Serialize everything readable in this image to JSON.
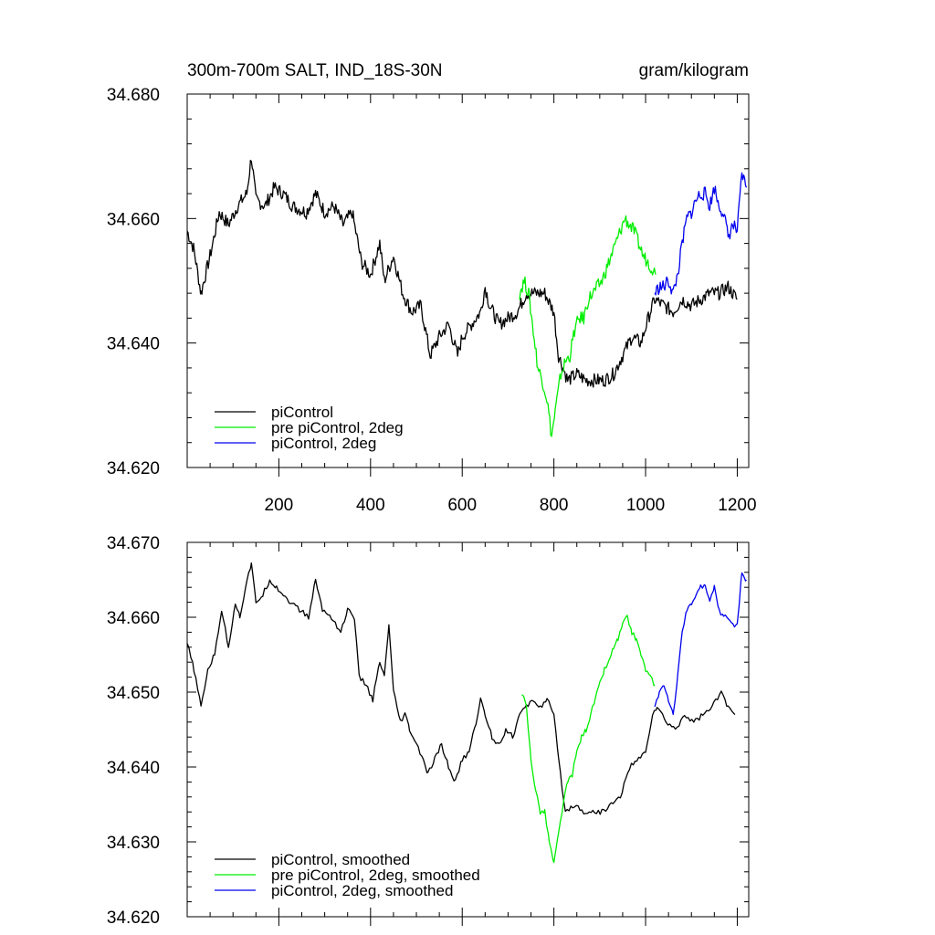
{
  "chart_data": [
    {
      "type": "line",
      "title": "300m-700m SALT, IND_18S-30N",
      "units": "gram/kilogram",
      "xlim": [
        0,
        1225
      ],
      "ylim": [
        34.62,
        34.68
      ],
      "xticks": [
        200,
        400,
        600,
        800,
        1000,
        1200
      ],
      "xtick_labels": [
        "200",
        "400",
        "600",
        "800",
        "1000",
        "1200"
      ],
      "yticks": [
        34.62,
        34.64,
        34.66,
        34.68
      ],
      "ytick_labels": [
        "34.620",
        "34.640",
        "34.660",
        "34.680"
      ],
      "grid": false,
      "legend_position": "bottom-left",
      "series": [
        {
          "name": "piControl",
          "color": "#000000",
          "points": [
            [
              0,
              34.658
            ],
            [
              15,
              34.655
            ],
            [
              30,
              34.648
            ],
            [
              50,
              34.654
            ],
            [
              70,
              34.661
            ],
            [
              90,
              34.659
            ],
            [
              110,
              34.662
            ],
            [
              130,
              34.664
            ],
            [
              140,
              34.67
            ],
            [
              150,
              34.663
            ],
            [
              170,
              34.662
            ],
            [
              190,
              34.665
            ],
            [
              210,
              34.664
            ],
            [
              230,
              34.662
            ],
            [
              260,
              34.661
            ],
            [
              280,
              34.664
            ],
            [
              300,
              34.661
            ],
            [
              320,
              34.662
            ],
            [
              340,
              34.659
            ],
            [
              360,
              34.661
            ],
            [
              380,
              34.653
            ],
            [
              400,
              34.651
            ],
            [
              420,
              34.656
            ],
            [
              430,
              34.65
            ],
            [
              450,
              34.654
            ],
            [
              470,
              34.648
            ],
            [
              490,
              34.645
            ],
            [
              510,
              34.646
            ],
            [
              530,
              34.638
            ],
            [
              550,
              34.641
            ],
            [
              570,
              34.643
            ],
            [
              590,
              34.638
            ],
            [
              600,
              34.641
            ],
            [
              620,
              34.643
            ],
            [
              640,
              34.645
            ],
            [
              650,
              34.649
            ],
            [
              660,
              34.646
            ],
            [
              680,
              34.643
            ],
            [
              700,
              34.644
            ],
            [
              720,
              34.645
            ],
            [
              740,
              34.648
            ],
            [
              760,
              34.648
            ],
            [
              780,
              34.648
            ],
            [
              800,
              34.645
            ],
            [
              810,
              34.638
            ],
            [
              830,
              34.634
            ],
            [
              850,
              34.635
            ],
            [
              870,
              34.634
            ],
            [
              890,
              34.634
            ],
            [
              910,
              34.634
            ],
            [
              930,
              34.635
            ],
            [
              950,
              34.638
            ],
            [
              970,
              34.641
            ],
            [
              990,
              34.64
            ],
            [
              1010,
              34.645
            ],
            [
              1020,
              34.647
            ],
            [
              1040,
              34.646
            ],
            [
              1060,
              34.645
            ],
            [
              1080,
              34.647
            ],
            [
              1100,
              34.646
            ],
            [
              1120,
              34.647
            ],
            [
              1140,
              34.648
            ],
            [
              1160,
              34.648
            ],
            [
              1180,
              34.649
            ],
            [
              1200,
              34.647
            ]
          ]
        },
        {
          "name": "pre piControl, 2deg",
          "color": "#00ee00",
          "points": [
            [
              725,
              34.648
            ],
            [
              735,
              34.65
            ],
            [
              745,
              34.648
            ],
            [
              755,
              34.642
            ],
            [
              765,
              34.636
            ],
            [
              775,
              34.634
            ],
            [
              785,
              34.631
            ],
            [
              795,
              34.625
            ],
            [
              805,
              34.63
            ],
            [
              815,
              34.635
            ],
            [
              825,
              34.637
            ],
            [
              835,
              34.638
            ],
            [
              845,
              34.642
            ],
            [
              855,
              34.644
            ],
            [
              865,
              34.644
            ],
            [
              875,
              34.647
            ],
            [
              885,
              34.648
            ],
            [
              895,
              34.649
            ],
            [
              905,
              34.65
            ],
            [
              915,
              34.652
            ],
            [
              925,
              34.654
            ],
            [
              935,
              34.656
            ],
            [
              945,
              34.658
            ],
            [
              955,
              34.66
            ],
            [
              965,
              34.659
            ],
            [
              975,
              34.658
            ],
            [
              985,
              34.656
            ],
            [
              995,
              34.654
            ],
            [
              1005,
              34.653
            ],
            [
              1015,
              34.652
            ],
            [
              1022,
              34.651
            ]
          ]
        },
        {
          "name": "piControl, 2deg",
          "color": "#0000ee",
          "points": [
            [
              1020,
              34.648
            ],
            [
              1030,
              34.649
            ],
            [
              1040,
              34.649
            ],
            [
              1050,
              34.65
            ],
            [
              1060,
              34.648
            ],
            [
              1070,
              34.651
            ],
            [
              1080,
              34.656
            ],
            [
              1090,
              34.66
            ],
            [
              1100,
              34.661
            ],
            [
              1110,
              34.663
            ],
            [
              1120,
              34.664
            ],
            [
              1130,
              34.664
            ],
            [
              1140,
              34.662
            ],
            [
              1150,
              34.665
            ],
            [
              1160,
              34.662
            ],
            [
              1170,
              34.661
            ],
            [
              1180,
              34.657
            ],
            [
              1190,
              34.659
            ],
            [
              1200,
              34.658
            ],
            [
              1210,
              34.667
            ],
            [
              1220,
              34.665
            ]
          ]
        }
      ]
    },
    {
      "type": "line",
      "xlim": [
        0,
        1225
      ],
      "ylim": [
        34.62,
        34.67
      ],
      "yticks": [
        34.62,
        34.63,
        34.64,
        34.65,
        34.66,
        34.67
      ],
      "ytick_labels": [
        "34.620",
        "34.630",
        "34.640",
        "34.650",
        "34.660",
        "34.670"
      ],
      "grid": false,
      "legend_position": "bottom-left",
      "series": [
        {
          "name": "piControl, smoothed",
          "color": "#000000",
          "points": [
            [
              0,
              34.6565
            ],
            [
              15,
              34.653
            ],
            [
              30,
              34.648
            ],
            [
              45,
              34.653
            ],
            [
              60,
              34.655
            ],
            [
              75,
              34.661
            ],
            [
              90,
              34.656
            ],
            [
              105,
              34.662
            ],
            [
              115,
              34.66
            ],
            [
              130,
              34.665
            ],
            [
              140,
              34.667
            ],
            [
              150,
              34.662
            ],
            [
              165,
              34.663
            ],
            [
              180,
              34.665
            ],
            [
              195,
              34.664
            ],
            [
              210,
              34.663
            ],
            [
              225,
              34.662
            ],
            [
              245,
              34.661
            ],
            [
              265,
              34.66
            ],
            [
              280,
              34.665
            ],
            [
              295,
              34.661
            ],
            [
              315,
              34.66
            ],
            [
              335,
              34.658
            ],
            [
              350,
              34.661
            ],
            [
              365,
              34.66
            ],
            [
              375,
              34.652
            ],
            [
              390,
              34.651
            ],
            [
              405,
              34.649
            ],
            [
              420,
              34.654
            ],
            [
              430,
              34.652
            ],
            [
              440,
              34.659
            ],
            [
              450,
              34.65
            ],
            [
              465,
              34.646
            ],
            [
              475,
              34.647
            ],
            [
              485,
              34.645
            ],
            [
              500,
              34.643
            ],
            [
              515,
              34.641
            ],
            [
              525,
              34.639
            ],
            [
              540,
              34.641
            ],
            [
              555,
              34.643
            ],
            [
              570,
              34.64
            ],
            [
              585,
              34.638
            ],
            [
              600,
              34.641
            ],
            [
              615,
              34.642
            ],
            [
              630,
              34.646
            ],
            [
              640,
              34.649
            ],
            [
              650,
              34.647
            ],
            [
              665,
              34.644
            ],
            [
              680,
              34.643
            ],
            [
              695,
              34.645
            ],
            [
              710,
              34.644
            ],
            [
              725,
              34.647
            ],
            [
              740,
              34.648
            ],
            [
              755,
              34.649
            ],
            [
              770,
              34.648
            ],
            [
              785,
              34.649
            ],
            [
              800,
              34.647
            ],
            [
              810,
              34.641
            ],
            [
              825,
              34.634
            ],
            [
              845,
              34.635
            ],
            [
              865,
              34.634
            ],
            [
              885,
              34.634
            ],
            [
              905,
              34.634
            ],
            [
              925,
              34.635
            ],
            [
              945,
              34.636
            ],
            [
              965,
              34.64
            ],
            [
              985,
              34.641
            ],
            [
              1000,
              34.642
            ],
            [
              1015,
              34.647
            ],
            [
              1025,
              34.648
            ],
            [
              1045,
              34.646
            ],
            [
              1065,
              34.645
            ],
            [
              1085,
              34.647
            ],
            [
              1105,
              34.646
            ],
            [
              1125,
              34.647
            ],
            [
              1145,
              34.648
            ],
            [
              1165,
              34.65
            ],
            [
              1180,
              34.648
            ],
            [
              1195,
              34.647
            ]
          ]
        },
        {
          "name": "pre piControl, 2deg, smoothed",
          "color": "#00ee00",
          "points": [
            [
              730,
              34.65
            ],
            [
              740,
              34.648
            ],
            [
              750,
              34.641
            ],
            [
              760,
              34.637
            ],
            [
              770,
              34.634
            ],
            [
              780,
              34.634
            ],
            [
              790,
              34.63
            ],
            [
              800,
              34.627
            ],
            [
              810,
              34.631
            ],
            [
              820,
              34.635
            ],
            [
              830,
              34.638
            ],
            [
              840,
              34.639
            ],
            [
              850,
              34.642
            ],
            [
              860,
              34.644
            ],
            [
              870,
              34.645
            ],
            [
              880,
              34.647
            ],
            [
              890,
              34.649
            ],
            [
              900,
              34.651
            ],
            [
              910,
              34.653
            ],
            [
              920,
              34.654
            ],
            [
              930,
              34.656
            ],
            [
              940,
              34.657
            ],
            [
              950,
              34.659
            ],
            [
              960,
              34.66
            ],
            [
              970,
              34.658
            ],
            [
              980,
              34.657
            ],
            [
              990,
              34.655
            ],
            [
              1000,
              34.653
            ],
            [
              1010,
              34.652
            ],
            [
              1020,
              34.651
            ]
          ]
        },
        {
          "name": "piControl, 2deg, smoothed",
          "color": "#0000ee",
          "points": [
            [
              1020,
              34.648
            ],
            [
              1030,
              34.65
            ],
            [
              1040,
              34.651
            ],
            [
              1050,
              34.649
            ],
            [
              1060,
              34.647
            ],
            [
              1070,
              34.652
            ],
            [
              1080,
              34.658
            ],
            [
              1090,
              34.661
            ],
            [
              1100,
              34.662
            ],
            [
              1110,
              34.663
            ],
            [
              1120,
              34.664
            ],
            [
              1130,
              34.664
            ],
            [
              1140,
              34.662
            ],
            [
              1150,
              34.664
            ],
            [
              1160,
              34.661
            ],
            [
              1170,
              34.66
            ],
            [
              1180,
              34.66
            ],
            [
              1190,
              34.659
            ],
            [
              1200,
              34.659
            ],
            [
              1210,
              34.666
            ],
            [
              1220,
              34.665
            ]
          ]
        }
      ]
    }
  ]
}
